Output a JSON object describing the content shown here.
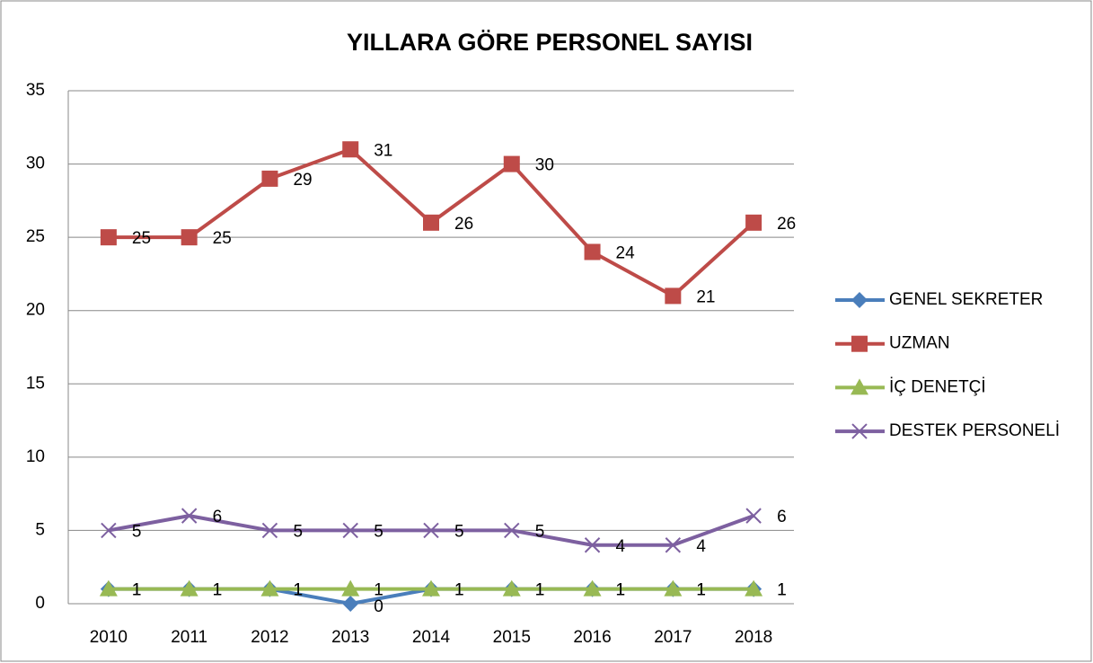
{
  "chart_data": {
    "type": "line",
    "title": "YILLARA GÖRE PERSONEL SAYISI",
    "categories": [
      "2010",
      "2011",
      "2012",
      "2013",
      "2014",
      "2015",
      "2016",
      "2017",
      "2018"
    ],
    "series": [
      {
        "name": "GENEL SEKRETER",
        "color": "#4a7ebb",
        "marker": "diamond",
        "values": [
          1,
          1,
          1,
          0,
          1,
          1,
          1,
          1,
          1
        ]
      },
      {
        "name": "UZMAN",
        "color": "#be4b48",
        "marker": "square",
        "values": [
          25,
          25,
          29,
          31,
          26,
          30,
          24,
          21,
          26
        ]
      },
      {
        "name": "İÇ DENETÇİ",
        "color": "#98b954",
        "marker": "triangle",
        "values": [
          1,
          1,
          1,
          1,
          1,
          1,
          1,
          1,
          1
        ]
      },
      {
        "name": "DESTEK PERSONELİ",
        "color": "#7d60a0",
        "marker": "x",
        "values": [
          5,
          6,
          5,
          5,
          5,
          5,
          4,
          4,
          6
        ]
      }
    ],
    "ylim": [
      0,
      35
    ],
    "yticks": [
      0,
      5,
      10,
      15,
      20,
      25,
      30,
      35
    ],
    "grid": true,
    "legend": "right"
  }
}
